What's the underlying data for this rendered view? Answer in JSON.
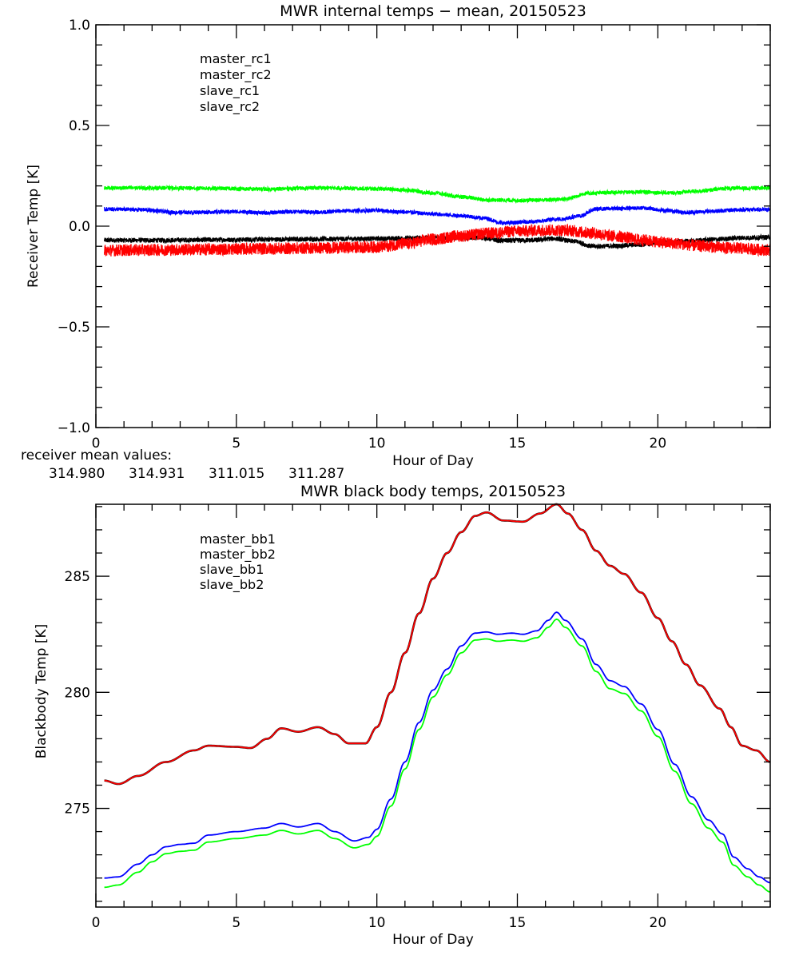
{
  "colors": {
    "black": "#000000",
    "red": "#ff0000",
    "blue": "#0000ff",
    "green": "#00ff00"
  },
  "chart_data": [
    {
      "type": "line",
      "title": "MWR internal temps − mean, 20150523",
      "xlabel": "Hour of Day",
      "ylabel": "Receiver Temp [K]",
      "xlim": [
        0,
        24
      ],
      "ylim": [
        -1.0,
        1.0
      ],
      "xticks": [
        0,
        5,
        10,
        15,
        20
      ],
      "xtick_labels": [
        "0",
        "5",
        "10",
        "15",
        "20"
      ],
      "x_minor_step": 1,
      "yticks": [
        -1.0,
        -0.5,
        0.0,
        0.5,
        1.0
      ],
      "ytick_labels": [
        "−1.0",
        "−0.5",
        "0.0",
        "0.5",
        "1.0"
      ],
      "y_minor_step": 0.1,
      "grid": false,
      "legend_position": "top-left",
      "series": [
        {
          "name": "master_rc1",
          "color": "#000000",
          "noise": 0.012,
          "x": [
            0.3,
            2,
            4,
            6,
            8,
            10,
            11,
            12,
            13,
            13.7,
            14.5,
            15.5,
            16.3,
            17,
            17.7,
            18.5,
            19.3,
            20,
            21,
            22,
            23,
            24
          ],
          "y": [
            -0.07,
            -0.07,
            -0.068,
            -0.066,
            -0.064,
            -0.062,
            -0.06,
            -0.058,
            -0.056,
            -0.058,
            -0.072,
            -0.07,
            -0.062,
            -0.075,
            -0.1,
            -0.098,
            -0.092,
            -0.085,
            -0.075,
            -0.066,
            -0.058,
            -0.055
          ]
        },
        {
          "name": "master_rc2",
          "color": "#ff0000",
          "noise": 0.03,
          "x": [
            0.3,
            2,
            4,
            6,
            8,
            10,
            11,
            12,
            13,
            14,
            15,
            16,
            16.7,
            17.5,
            18.5,
            19.5,
            20.5,
            21.5,
            22.5,
            24
          ],
          "y": [
            -0.12,
            -0.118,
            -0.115,
            -0.112,
            -0.108,
            -0.104,
            -0.088,
            -0.065,
            -0.048,
            -0.035,
            -0.025,
            -0.02,
            -0.02,
            -0.032,
            -0.05,
            -0.07,
            -0.085,
            -0.098,
            -0.108,
            -0.118
          ]
        },
        {
          "name": "slave_rc1",
          "color": "#0000ff",
          "noise": 0.01,
          "x": [
            0.3,
            1.5,
            3,
            4,
            5,
            6,
            7,
            8,
            9,
            10,
            11,
            12,
            13,
            13.8,
            14.5,
            15.5,
            16.5,
            17.2,
            17.8,
            18.5,
            19.5,
            20.3,
            21,
            22,
            23,
            24
          ],
          "y": [
            0.085,
            0.082,
            0.068,
            0.07,
            0.072,
            0.066,
            0.072,
            0.07,
            0.076,
            0.078,
            0.07,
            0.06,
            0.052,
            0.04,
            0.015,
            0.022,
            0.035,
            0.05,
            0.085,
            0.088,
            0.09,
            0.078,
            0.068,
            0.075,
            0.082,
            0.082
          ]
        },
        {
          "name": "slave_rc2",
          "color": "#00ff00",
          "noise": 0.01,
          "x": [
            0.3,
            2,
            4,
            6,
            8,
            10,
            11,
            12,
            13,
            14,
            15,
            16,
            16.7,
            17.5,
            18.5,
            19.5,
            20.5,
            21.5,
            22.5,
            24
          ],
          "y": [
            0.19,
            0.19,
            0.188,
            0.184,
            0.19,
            0.186,
            0.18,
            0.165,
            0.145,
            0.13,
            0.128,
            0.13,
            0.135,
            0.163,
            0.168,
            0.17,
            0.165,
            0.175,
            0.188,
            0.19
          ]
        }
      ],
      "annotation": {
        "label": "receiver mean values:",
        "values": [
          {
            "text": "314.980",
            "color": "#000000"
          },
          {
            "text": "314.931",
            "color": "#ff0000"
          },
          {
            "text": "311.015",
            "color": "#0000ff"
          },
          {
            "text": "311.287",
            "color": "#00ff00"
          }
        ]
      }
    },
    {
      "type": "line",
      "title": "MWR black body temps, 20150523",
      "xlabel": "Hour of Day",
      "ylabel": "Blackbody Temp [K]",
      "xlim": [
        0,
        24
      ],
      "ylim": [
        270.75,
        288.1
      ],
      "xticks": [
        0,
        5,
        10,
        15,
        20
      ],
      "xtick_labels": [
        "0",
        "5",
        "10",
        "15",
        "20"
      ],
      "x_minor_step": 1,
      "yticks": [
        275,
        280,
        285
      ],
      "ytick_labels": [
        "275",
        "280",
        "285"
      ],
      "y_minor_step": 1,
      "grid": false,
      "legend_position": "top-left",
      "series": [
        {
          "name": "master_bb1",
          "color": "#000000",
          "noise": 0,
          "x": [
            0.3,
            0.8,
            1.5,
            2.5,
            3.5,
            4.0,
            5.0,
            5.5,
            6.1,
            6.6,
            7.2,
            7.9,
            8.5,
            9.0,
            9.6,
            10.0,
            10.5,
            11.0,
            11.5,
            12.0,
            12.5,
            13.0,
            13.5,
            13.9,
            14.5,
            15.2,
            15.8,
            16.4,
            16.8,
            17.3,
            17.8,
            18.3,
            18.8,
            19.4,
            20.0,
            20.5,
            21.0,
            21.5,
            22.2,
            22.6,
            23.0,
            23.5,
            24.0
          ],
          "y": [
            276.2,
            276.05,
            276.4,
            277.0,
            277.5,
            277.7,
            277.65,
            277.6,
            278.0,
            278.45,
            278.3,
            278.5,
            278.2,
            277.8,
            277.8,
            278.5,
            280.0,
            281.7,
            283.4,
            284.9,
            286.0,
            286.9,
            287.6,
            287.75,
            287.4,
            287.35,
            287.7,
            288.1,
            287.7,
            287.0,
            286.1,
            285.45,
            285.1,
            284.3,
            283.2,
            282.2,
            281.2,
            280.3,
            279.3,
            278.5,
            277.7,
            277.5,
            277.0
          ]
        },
        {
          "name": "master_bb2",
          "color": "#ff0000",
          "noise": 0,
          "x": [
            0.3,
            0.8,
            1.5,
            2.5,
            3.5,
            4.0,
            5.0,
            5.5,
            6.1,
            6.6,
            7.2,
            7.9,
            8.5,
            9.0,
            9.6,
            10.0,
            10.5,
            11.0,
            11.5,
            12.0,
            12.5,
            13.0,
            13.5,
            13.9,
            14.5,
            15.2,
            15.8,
            16.4,
            16.8,
            17.3,
            17.8,
            18.3,
            18.8,
            19.4,
            20.0,
            20.5,
            21.0,
            21.5,
            22.2,
            22.6,
            23.0,
            23.5,
            24.0
          ],
          "y": [
            276.2,
            276.05,
            276.4,
            277.0,
            277.5,
            277.7,
            277.65,
            277.6,
            278.0,
            278.45,
            278.3,
            278.5,
            278.2,
            277.8,
            277.8,
            278.5,
            280.0,
            281.7,
            283.4,
            284.9,
            286.0,
            286.9,
            287.6,
            287.75,
            287.4,
            287.35,
            287.7,
            288.1,
            287.7,
            287.0,
            286.1,
            285.45,
            285.1,
            284.3,
            283.2,
            282.2,
            281.2,
            280.3,
            279.3,
            278.5,
            277.7,
            277.5,
            277.0
          ]
        },
        {
          "name": "slave_bb1",
          "color": "#0000ff",
          "noise": 0,
          "x": [
            0.3,
            0.8,
            1.5,
            2.0,
            2.5,
            3.0,
            3.5,
            4.0,
            5.0,
            6.0,
            6.6,
            7.2,
            7.9,
            8.5,
            9.2,
            9.7,
            10.0,
            10.5,
            11.0,
            11.5,
            12.0,
            12.5,
            13.0,
            13.5,
            13.9,
            14.3,
            14.8,
            15.2,
            15.7,
            16.1,
            16.4,
            16.7,
            17.3,
            17.8,
            18.3,
            18.8,
            19.4,
            20.0,
            20.6,
            21.2,
            21.8,
            22.3,
            22.7,
            23.2,
            23.6,
            24.0
          ],
          "y": [
            272.0,
            272.05,
            272.6,
            273.0,
            273.35,
            273.45,
            273.5,
            273.85,
            274.0,
            274.15,
            274.35,
            274.2,
            274.35,
            274.0,
            273.6,
            273.75,
            274.1,
            275.4,
            277.0,
            278.7,
            280.1,
            281.0,
            282.0,
            282.55,
            282.6,
            282.5,
            282.55,
            282.5,
            282.65,
            283.1,
            283.45,
            283.1,
            282.3,
            281.2,
            280.5,
            280.25,
            279.5,
            278.4,
            276.9,
            275.5,
            274.5,
            273.9,
            272.9,
            272.4,
            272.05,
            271.8
          ]
        },
        {
          "name": "slave_bb2",
          "color": "#00ff00",
          "noise": 0,
          "x": [
            0.3,
            0.8,
            1.5,
            2.0,
            2.5,
            3.0,
            3.5,
            4.0,
            5.0,
            6.0,
            6.6,
            7.2,
            7.9,
            8.5,
            9.2,
            9.7,
            10.0,
            10.5,
            11.0,
            11.5,
            12.0,
            12.5,
            13.0,
            13.5,
            13.9,
            14.3,
            14.8,
            15.2,
            15.7,
            16.1,
            16.4,
            16.7,
            17.3,
            17.8,
            18.3,
            18.8,
            19.4,
            20.0,
            20.6,
            21.2,
            21.8,
            22.3,
            22.7,
            23.2,
            23.6,
            24.0
          ],
          "y": [
            271.6,
            271.7,
            272.25,
            272.7,
            273.05,
            273.15,
            273.2,
            273.55,
            273.7,
            273.85,
            274.05,
            273.9,
            274.05,
            273.7,
            273.3,
            273.45,
            273.8,
            275.1,
            276.7,
            278.4,
            279.8,
            280.75,
            281.7,
            282.25,
            282.3,
            282.2,
            282.25,
            282.2,
            282.35,
            282.8,
            283.15,
            282.8,
            282.0,
            280.9,
            280.15,
            279.95,
            279.2,
            278.1,
            276.6,
            275.2,
            274.15,
            273.55,
            272.55,
            272.05,
            271.7,
            271.4
          ]
        }
      ]
    }
  ]
}
